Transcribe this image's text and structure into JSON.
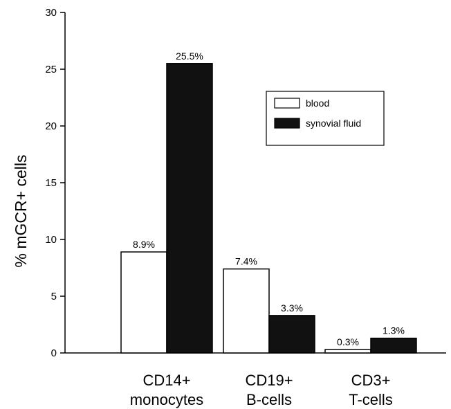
{
  "chart_data": {
    "type": "bar",
    "ylabel": "% mGCR+ cells",
    "ylim": [
      0,
      30
    ],
    "yticks": [
      0,
      5,
      10,
      15,
      20,
      25,
      30
    ],
    "yticks_text": [
      "0",
      "5",
      "10",
      "15",
      "20",
      "25",
      "30"
    ],
    "categories": [
      {
        "line1": "CD14+",
        "line2": "monocytes"
      },
      {
        "line1": "CD19+",
        "line2": "B-cells"
      },
      {
        "line1": "CD3+",
        "line2": "T-cells"
      }
    ],
    "series": [
      {
        "name": "blood",
        "color": "#ffffff",
        "values": [
          8.9,
          7.4,
          0.3
        ],
        "labels": [
          "8.9%",
          "7.4%",
          "0.3%"
        ]
      },
      {
        "name": "synovial fluid",
        "color": "#111111",
        "values": [
          25.5,
          3.3,
          1.3
        ],
        "labels": [
          "25.5%",
          "3.3%",
          "1.3%"
        ]
      }
    ],
    "legend_position": "upper-right",
    "grid": false
  }
}
